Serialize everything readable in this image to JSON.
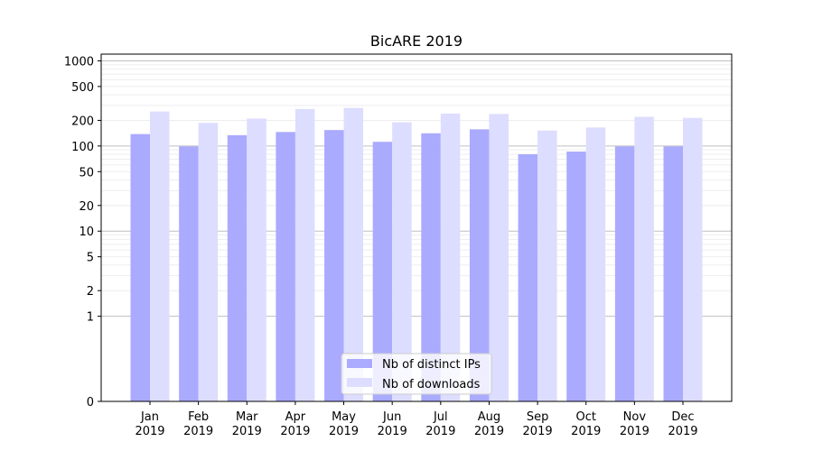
{
  "chart_data": {
    "type": "bar",
    "title": "BicARE 2019",
    "xlabel": "",
    "ylabel": "",
    "y_scale": "symlog",
    "ylim": [
      0,
      1200
    ],
    "y_ticks": [
      0,
      1,
      2,
      5,
      10,
      20,
      50,
      100,
      200,
      500,
      1000
    ],
    "grid": "horizontal",
    "legend_position": "bottom-center",
    "categories": [
      "Jan\n2019",
      "Feb\n2019",
      "Mar\n2019",
      "Apr\n2019",
      "May\n2019",
      "Jun\n2019",
      "Jul\n2019",
      "Aug\n2019",
      "Sep\n2019",
      "Oct\n2019",
      "Nov\n2019",
      "Dec\n2019"
    ],
    "series": [
      {
        "name": "Nb of distinct IPs",
        "color": "#aaaaff",
        "values": [
          138,
          99,
          134,
          146,
          154,
          112,
          141,
          157,
          80,
          86,
          99,
          99
        ]
      },
      {
        "name": "Nb of downloads",
        "color": "#ddddff",
        "values": [
          254,
          187,
          210,
          272,
          280,
          190,
          240,
          238,
          152,
          165,
          220,
          214
        ]
      }
    ]
  }
}
